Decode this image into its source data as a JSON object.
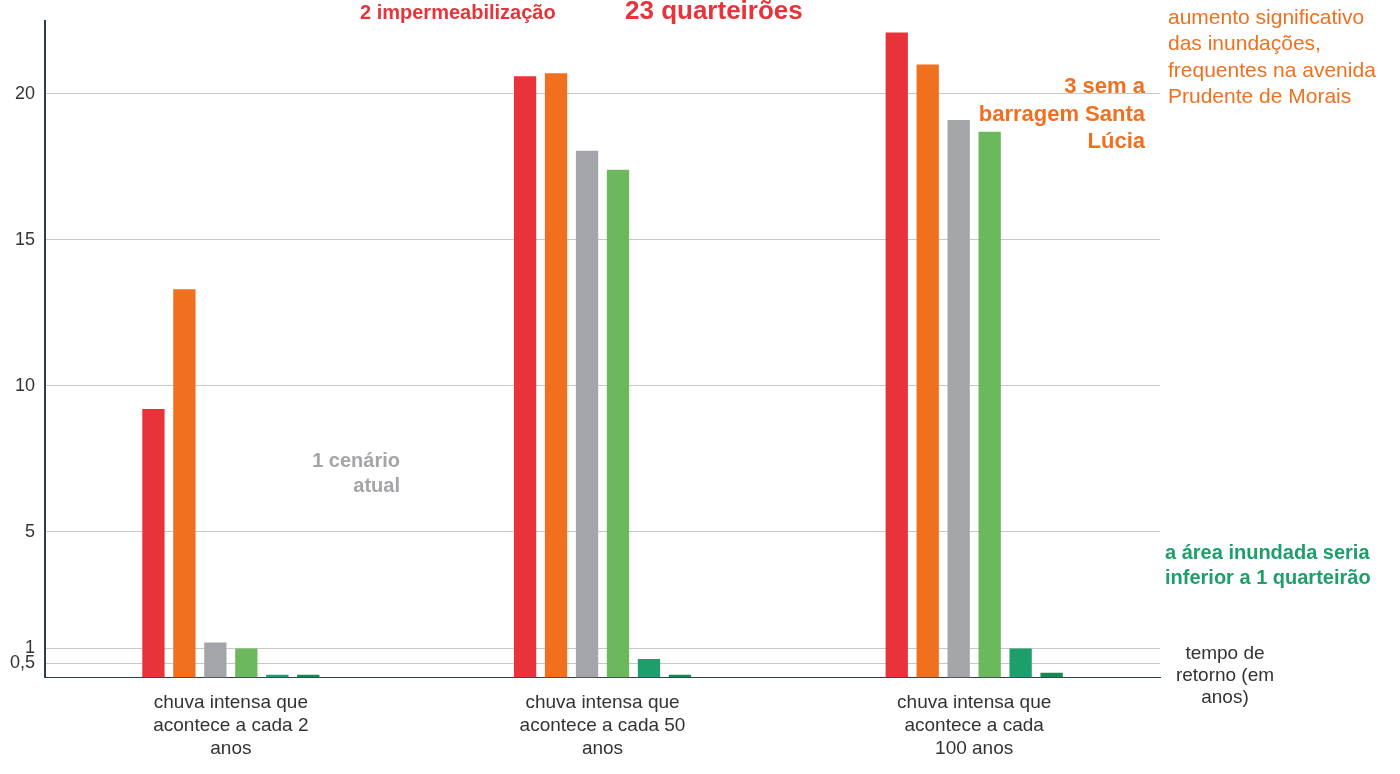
{
  "chart_data": {
    "type": "bar",
    "xlabel": "tempo de retorno (em anos)",
    "categories": [
      "chuva intensa que acontece a cada 2 anos",
      "chuva intensa que acontece a cada 50 anos",
      "chuva intensa que acontece a cada 100 anos"
    ],
    "series": [
      {
        "color": "#e8333a",
        "values": [
          9.2,
          20.6,
          22.1
        ]
      },
      {
        "color": "#f07020",
        "values": [
          13.3,
          20.7,
          21.0
        ]
      },
      {
        "color": "#a3a5a8",
        "values": [
          1.2,
          18.05,
          19.1
        ]
      },
      {
        "color": "#6cb85c",
        "values": [
          1.0,
          17.4,
          18.7
        ]
      },
      {
        "color": "#1e9e6a",
        "values": [
          0.1,
          0.64,
          1.0
        ]
      },
      {
        "color": "#148a50",
        "values": [
          0.1,
          0.1,
          0.17
        ]
      }
    ],
    "ylim": [
      0,
      22.5
    ],
    "yticks": [
      {
        "value": 0.5,
        "label": "0,5"
      },
      1,
      5,
      10,
      15,
      20
    ],
    "grid": "y",
    "annotations": [
      "2 impermeabilização",
      "23 quarteirões",
      "3 sem a barragem Santa Lúcia",
      "aumento significativo das inundações, frequentes na avenida Prudente de Morais",
      "1 cenário atual",
      "a área inundada seria inferior a 1 quarteirão"
    ]
  }
}
